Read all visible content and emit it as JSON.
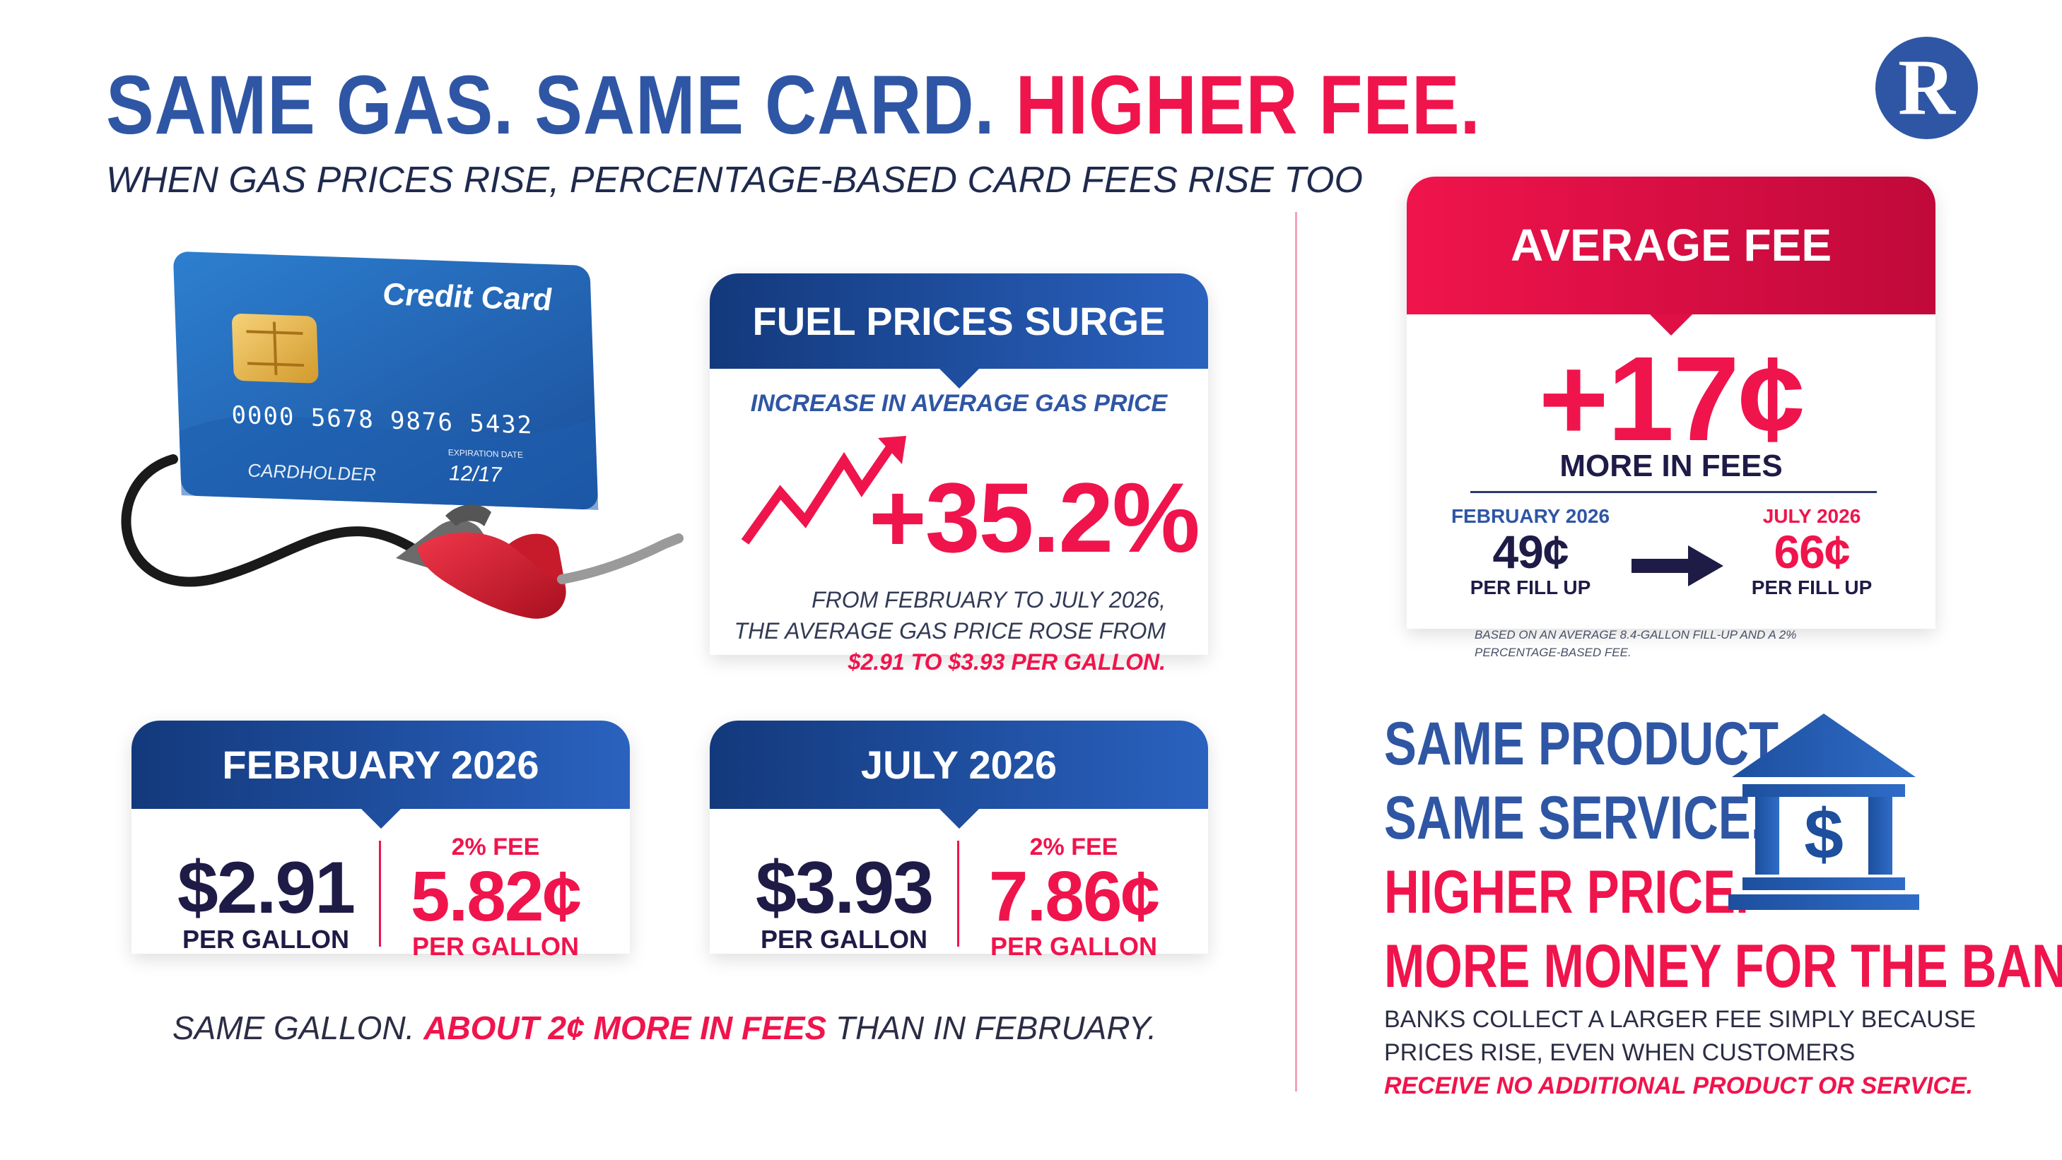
{
  "header": {
    "title_part1": "SAME GAS. SAME CARD.",
    "title_part2": "HIGHER FEE.",
    "subtitle": "WHEN GAS PRICES RISE, PERCENTAGE-BASED CARD FEES RISE TOO",
    "logo_letter": "R"
  },
  "card": {
    "title": "Credit Card",
    "number": "0000 5678 9876 5432",
    "holder": "CARDHOLDER",
    "expiry_label": "EXPIRATION DATE",
    "expiry": "12/17"
  },
  "fuel": {
    "title": "FUEL PRICES SURGE",
    "subtitle": "INCREASE IN AVERAGE GAS PRICE",
    "change": "+35.2%",
    "note_line1": "FROM FEBRUARY TO JULY 2026,",
    "note_line2": "THE AVERAGE GAS PRICE ROSE FROM",
    "note_line3": "$2.91 TO $3.93 PER GALLON."
  },
  "february": {
    "title": "FEBRUARY 2026",
    "price": "$2.91",
    "price_unit": "PER GALLON",
    "fee_label": "2% FEE",
    "fee": "5.82¢",
    "fee_unit": "PER GALLON"
  },
  "july": {
    "title": "JULY 2026",
    "price": "$3.93",
    "price_unit": "PER GALLON",
    "fee_label": "2% FEE",
    "fee": "7.86¢",
    "fee_unit": "PER GALLON"
  },
  "bottom_line": {
    "part1": "SAME GALLON.",
    "part2": "ABOUT 2¢ MORE IN FEES",
    "part3": "THAN IN FEBRUARY."
  },
  "average_fee": {
    "title": "AVERAGE FEE",
    "value": "+17¢",
    "value_label": "MORE IN FEES",
    "from_month": "FEBRUARY 2026",
    "from_value": "49¢",
    "from_unit": "PER FILL UP",
    "to_month": "JULY 2026",
    "to_value": "66¢",
    "to_unit": "PER FILL UP",
    "note_line1": "BASED ON AN AVERAGE 8.4-GALLON FILL-UP AND A 2%",
    "note_line2": "PERCENTAGE-BASED FEE."
  },
  "summary": {
    "line1": "SAME PRODUCT.",
    "line2": "SAME SERVICE.",
    "line3": "HIGHER PRICE.",
    "line4": "MORE MONEY FOR THE BANK.",
    "note_line1": "BANKS COLLECT A LARGER FEE SIMPLY BECAUSE",
    "note_line2": "PRICES RISE, EVEN WHEN CUSTOMERS",
    "note_line3": "RECEIVE NO ADDITIONAL PRODUCT OR SERVICE.",
    "bank_symbol": "$"
  },
  "colors": {
    "blue": "#2f56a4",
    "navy": "#1f1b47",
    "red": "#f0144c"
  },
  "icons": [
    "logo-r-icon",
    "credit-card-icon",
    "fuel-nozzle-icon",
    "trend-arrow-icon",
    "right-arrow-icon",
    "bank-icon"
  ]
}
